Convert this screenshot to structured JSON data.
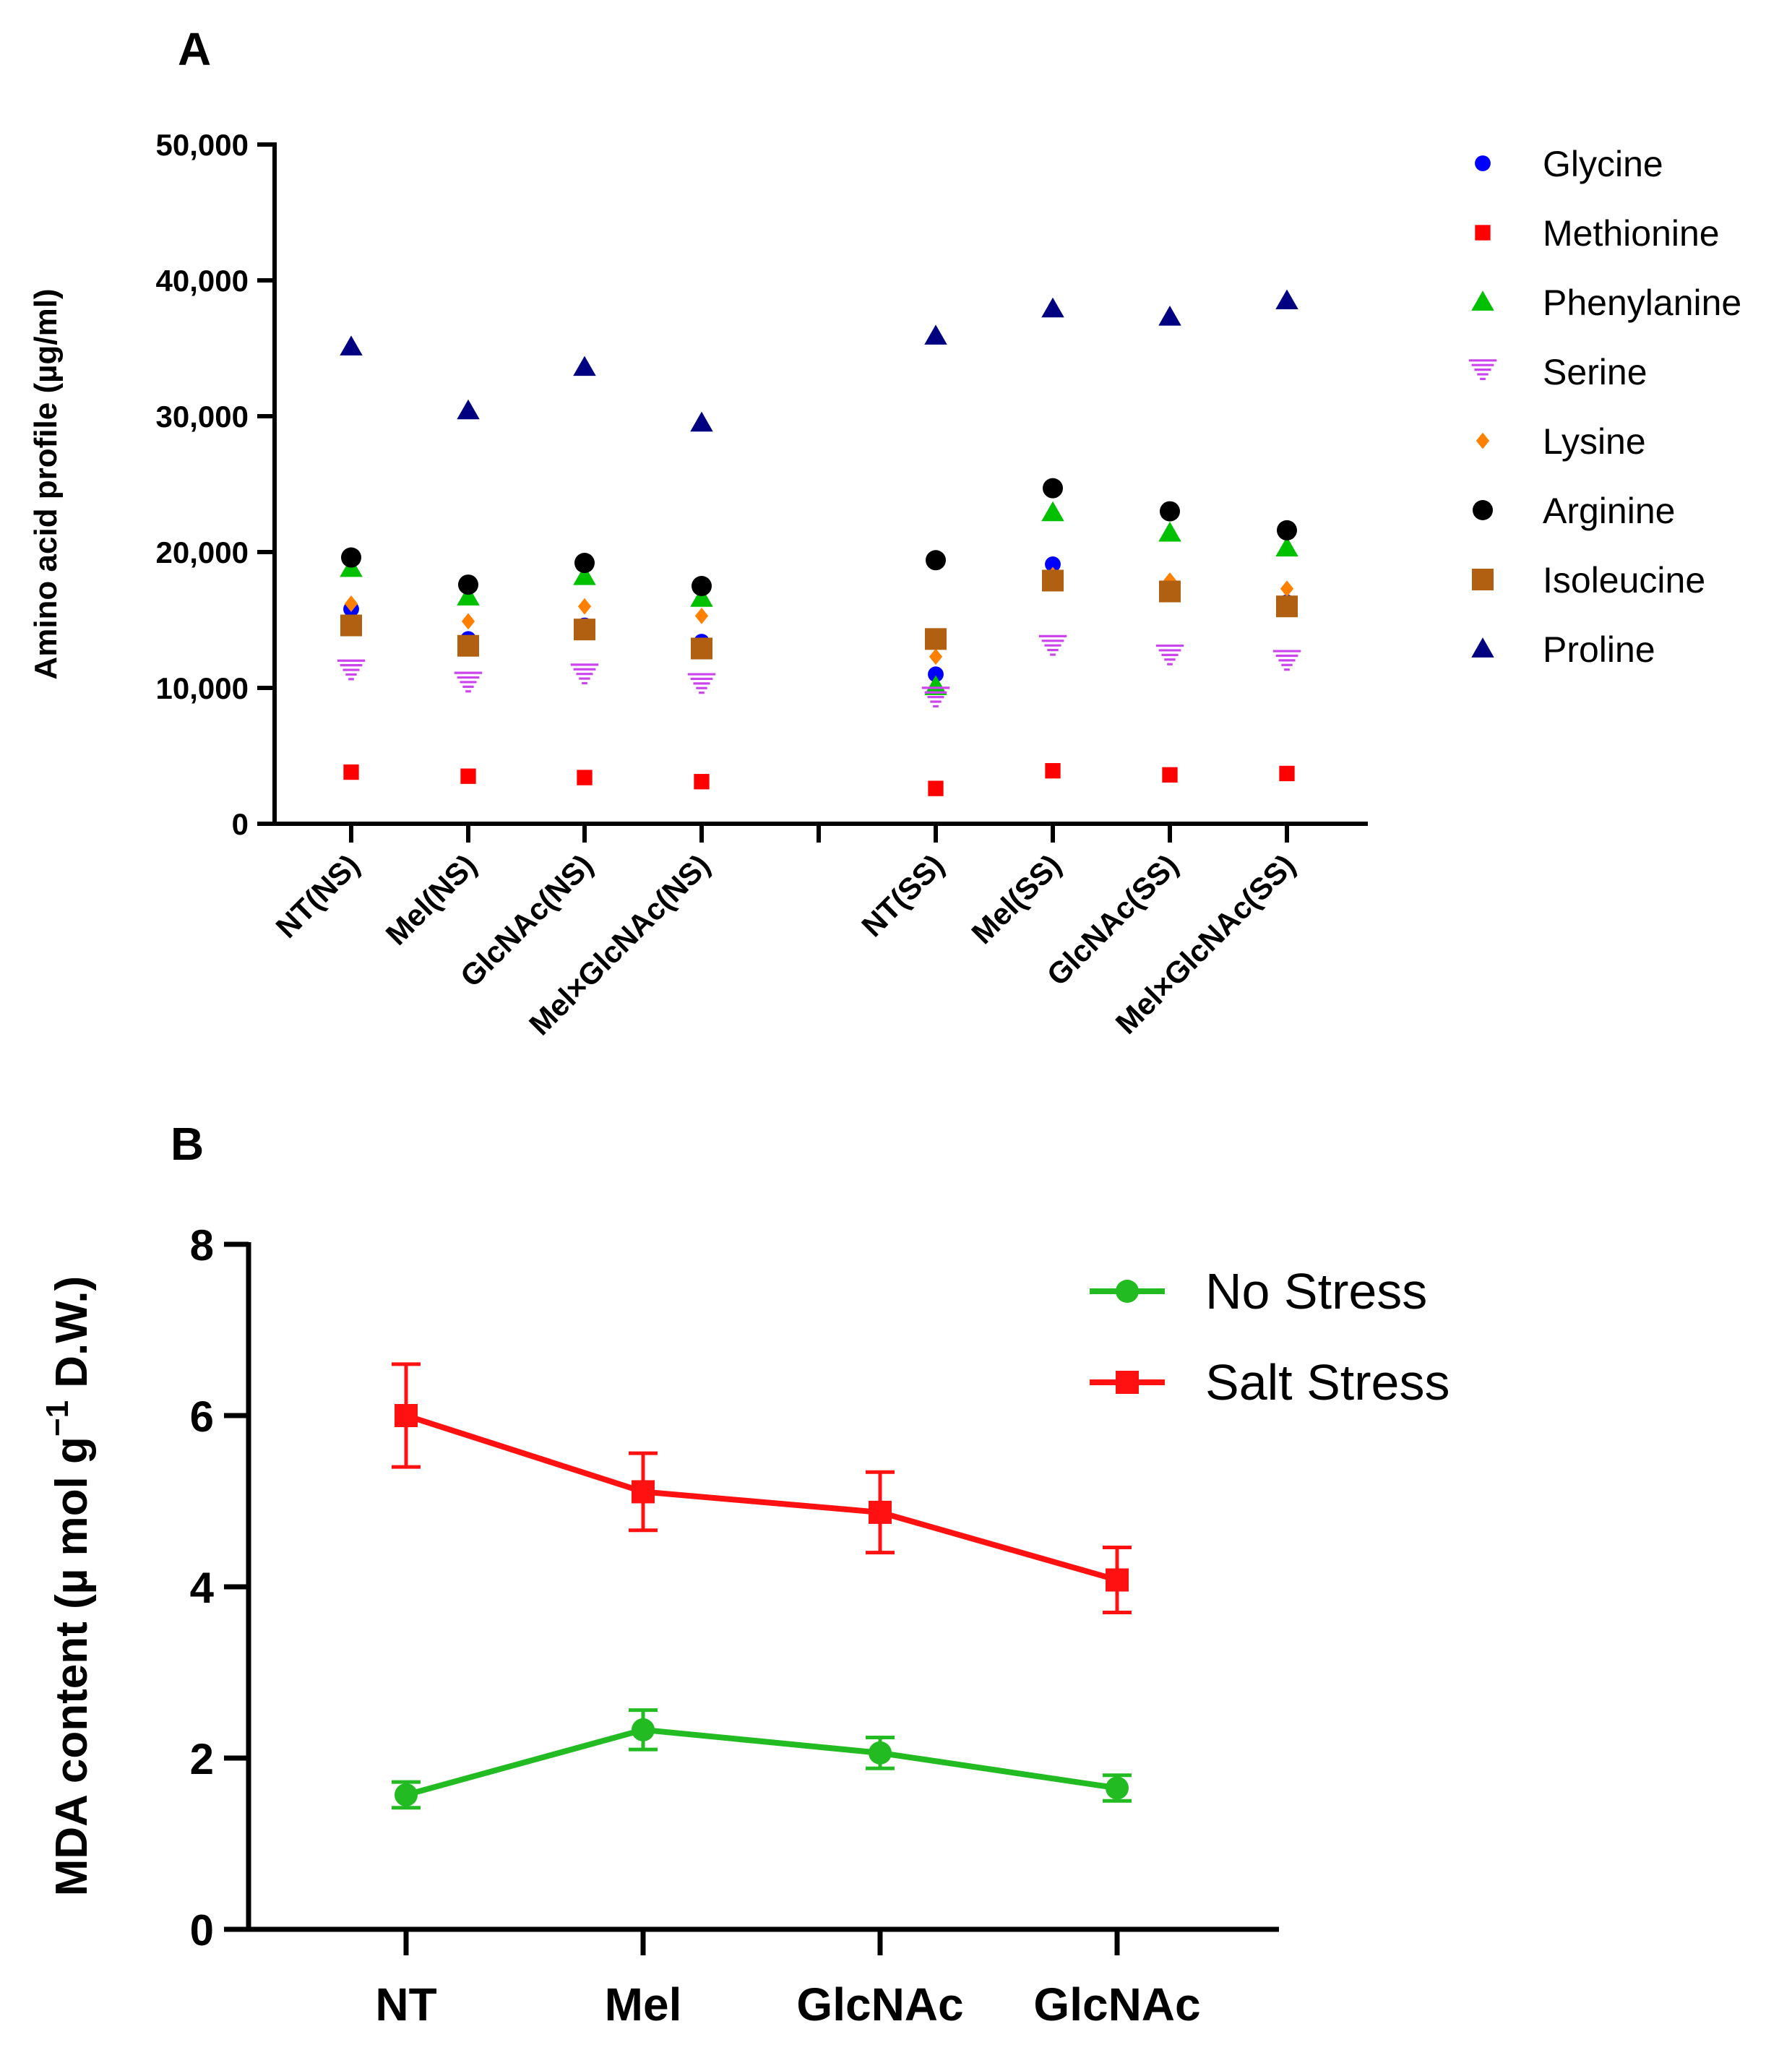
{
  "chart_data": [
    {
      "panel": "A",
      "type": "scatter",
      "title": "",
      "ylabel": "Amino acid profile (µg/ml)",
      "xlabel": "",
      "ylim": [
        0,
        50000
      ],
      "yticks": [
        0,
        10000,
        20000,
        30000,
        40000,
        50000
      ],
      "ytick_labels": [
        "0",
        "10,000",
        "20,000",
        "30,000",
        "40,000",
        "50,000"
      ],
      "categories": [
        "NT(NS)",
        "Mel(NS)",
        "GlcNAc(NS)",
        "Mel×GlcNAc(NS)",
        "NT(SS)",
        "Mel(SS)",
        "GlcNAc(SS)",
        "Mel×GlcNAc(SS)"
      ],
      "legend_position": "right",
      "series": [
        {
          "name": "Glycine",
          "marker": "circle-small",
          "color": "#0000ff",
          "values": [
            15800,
            13600,
            14600,
            13400,
            11000,
            19100,
            17200,
            16300
          ]
        },
        {
          "name": "Methionine",
          "marker": "square-small",
          "color": "#ff0000",
          "values": [
            3800,
            3500,
            3400,
            3100,
            2600,
            3900,
            3600,
            3700
          ]
        },
        {
          "name": "Phenylanine",
          "marker": "triangle-up",
          "color": "#00c000",
          "values": [
            18800,
            16700,
            18200,
            16600,
            10100,
            22900,
            21400,
            20300
          ]
        },
        {
          "name": "Serine",
          "marker": "triangle-down-striped",
          "color": "#cc44ee",
          "values": [
            11200,
            10300,
            10900,
            10200,
            9200,
            13000,
            12300,
            11900
          ]
        },
        {
          "name": "Lysine",
          "marker": "diamond",
          "color": "#ff8000",
          "values": [
            16200,
            14900,
            16000,
            15300,
            12300,
            18300,
            17900,
            17300
          ]
        },
        {
          "name": "Arginine",
          "marker": "circle",
          "color": "#000000",
          "values": [
            19600,
            17600,
            19200,
            17500,
            19400,
            24700,
            23000,
            21600
          ]
        },
        {
          "name": "Isoleucine",
          "marker": "square",
          "color": "#b06010",
          "values": [
            14600,
            13100,
            14300,
            12900,
            13600,
            17900,
            17100,
            16000
          ]
        },
        {
          "name": "Proline",
          "marker": "triangle-up",
          "color": "#000080",
          "values": [
            35100,
            30400,
            33600,
            29500,
            35900,
            37900,
            37300,
            38500
          ]
        }
      ]
    },
    {
      "panel": "B",
      "type": "line",
      "title": "",
      "ylabel_main": "MDA content (µ mol g",
      "ylabel_sup": "−1",
      "ylabel_tail": " D.W.)",
      "xlabel": "",
      "ylim": [
        0,
        8
      ],
      "yticks": [
        0,
        2,
        4,
        6,
        8
      ],
      "ytick_labels": [
        "0",
        "2",
        "4",
        "6",
        "8"
      ],
      "categories": [
        "NT",
        "Mel",
        "GlcNAc",
        "GlcNAc"
      ],
      "legend_position": "top-right",
      "series": [
        {
          "name": "No Stress",
          "marker": "circle",
          "color": "#22bb22",
          "values": [
            1.57,
            2.33,
            2.06,
            1.65
          ],
          "errors": [
            0.15,
            0.23,
            0.18,
            0.15
          ]
        },
        {
          "name": "Salt Stress",
          "marker": "square",
          "color": "#ff1111",
          "values": [
            6.0,
            5.11,
            4.87,
            4.08
          ],
          "errors": [
            0.6,
            0.45,
            0.47,
            0.38
          ]
        }
      ]
    }
  ],
  "panels": {
    "a_letter": "A",
    "b_letter": "B"
  }
}
